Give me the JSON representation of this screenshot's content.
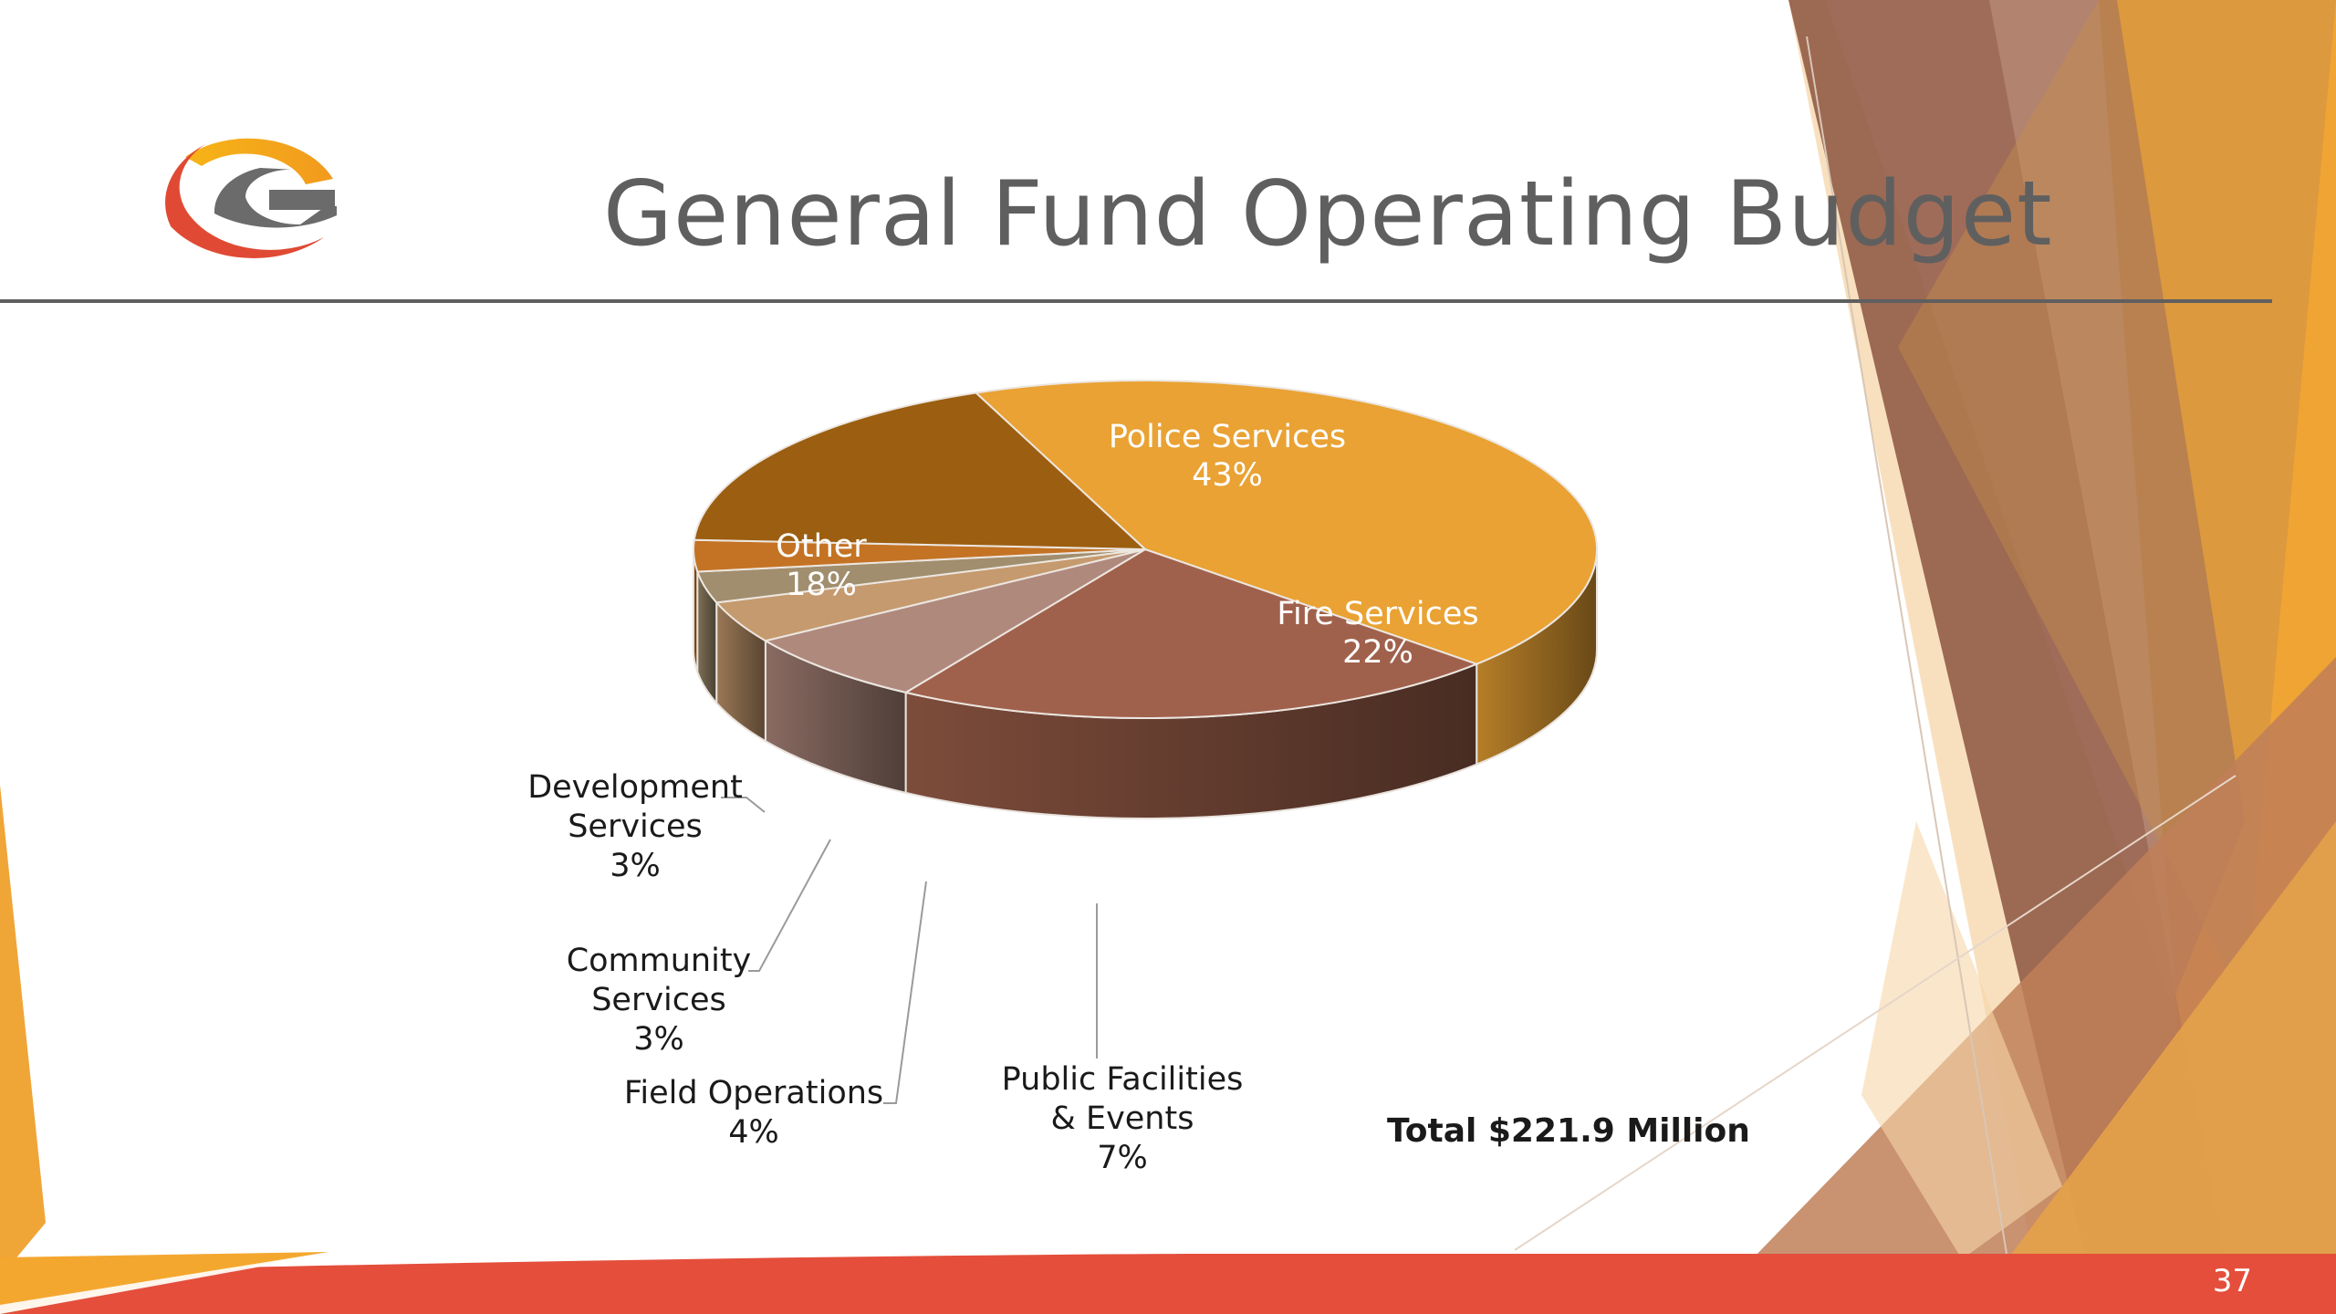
{
  "slide": {
    "title": "General Fund Operating Budget",
    "page_number": "37",
    "total": "Total $221.9 Million",
    "colors": {
      "accent_red": "#E44E3B",
      "accent_orange": "#F0A537",
      "accent_brown": "#A56A57",
      "logo_gray": "#696969"
    },
    "logo_icon": "g-logo-icon"
  },
  "chart_data": {
    "type": "pie",
    "style": "3d",
    "title": "",
    "slices": [
      {
        "label": "Police Services",
        "value": 43,
        "pct_label": "43%",
        "color": "#E9A233"
      },
      {
        "label": "Fire Services",
        "value": 22,
        "pct_label": "22%",
        "color": "#A0614C"
      },
      {
        "label": "Public Facilities & Events",
        "value": 7,
        "pct_label": "7%",
        "color": "#B0897D"
      },
      {
        "label": "Field Operations",
        "value": 4,
        "pct_label": "4%",
        "color": "#C59A6E"
      },
      {
        "label": "Community Services",
        "value": 3,
        "pct_label": "3%",
        "color": "#A18E6E"
      },
      {
        "label": "Development Services",
        "value": 3,
        "pct_label": "3%",
        "color": "#C47324"
      },
      {
        "label": "Other",
        "value": 18,
        "pct_label": "18%",
        "color": "#9C5E10"
      }
    ],
    "label_lines": {
      "Police Services": [
        "Police Services",
        "43%"
      ],
      "Fire Services": [
        "Fire Services",
        "22%"
      ],
      "Public Facilities & Events": [
        "Public Facilities",
        "& Events",
        "7%"
      ],
      "Field Operations": [
        "Field Operations",
        "4%"
      ],
      "Community Services": [
        "Community",
        "Services",
        "3%"
      ],
      "Development Services": [
        "Development",
        "Services",
        "3%"
      ],
      "Other": [
        "Other",
        "18%"
      ]
    }
  }
}
